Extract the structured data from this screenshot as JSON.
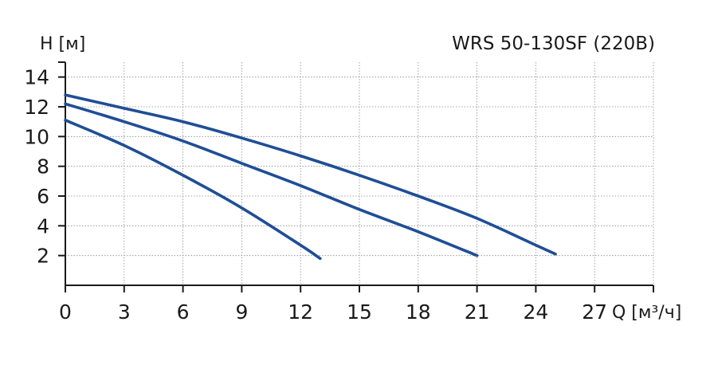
{
  "chart_data": {
    "type": "line",
    "title": "WRS 50-130SF (220В)",
    "ylabel": "H [м]",
    "xlabel": "Q [м³/ч]",
    "xlim": [
      0,
      30
    ],
    "ylim": [
      0,
      15
    ],
    "x_ticks": [
      0,
      3,
      6,
      9,
      12,
      15,
      18,
      21,
      24,
      27
    ],
    "y_ticks": [
      2,
      4,
      6,
      8,
      10,
      12,
      14
    ],
    "x_tick_labels": [
      "0",
      "3",
      "6",
      "9",
      "12",
      "15",
      "18",
      "21",
      "24",
      "27"
    ],
    "y_tick_labels": [
      "2",
      "4",
      "6",
      "8",
      "10",
      "12",
      "14"
    ],
    "grid": true,
    "series_color": "#1f4e96",
    "series": [
      {
        "x": [
          0,
          3,
          6,
          9,
          12,
          13
        ],
        "y": [
          11.1,
          9.4,
          7.4,
          5.2,
          2.7,
          1.8
        ]
      },
      {
        "x": [
          0,
          3,
          6,
          9,
          12,
          15,
          18,
          21
        ],
        "y": [
          12.2,
          11.0,
          9.7,
          8.2,
          6.7,
          5.1,
          3.6,
          2.0
        ]
      },
      {
        "x": [
          0,
          3,
          6,
          9,
          12,
          15,
          18,
          21,
          24,
          25
        ],
        "y": [
          12.8,
          11.9,
          11.0,
          9.9,
          8.7,
          7.4,
          6.0,
          4.5,
          2.7,
          2.1
        ]
      }
    ]
  }
}
